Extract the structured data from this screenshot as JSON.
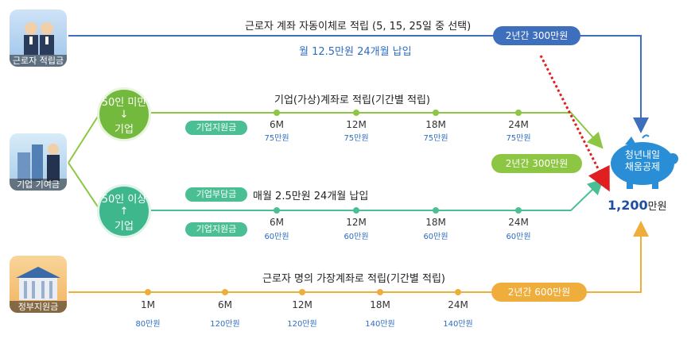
{
  "icons": {
    "worker": {
      "label": "근로자 적립금"
    },
    "company": {
      "label": "기업 기여금"
    },
    "government": {
      "label": "정부지원금"
    }
  },
  "worker_row": {
    "title": "근로자 계좌 자동이체로 적립 (5, 15, 25일 중 선택)",
    "subtitle": "월 12.5만원 24개월 납입",
    "total_pill": "2년간 300만원"
  },
  "company_small": {
    "circle_line1": "50인 미만↓",
    "circle_line2": "기업",
    "title": "기업(가상)계좌로 적립(기간별 적립)",
    "tag": "기업지원금",
    "milestones": [
      {
        "month": "6M",
        "amount": "75만원"
      },
      {
        "month": "12M",
        "amount": "75만원"
      },
      {
        "month": "18M",
        "amount": "75만원"
      },
      {
        "month": "24M",
        "amount": "75만원"
      }
    ]
  },
  "company_total_pill": "2년간 300만원",
  "company_large": {
    "circle_line1": "50인 이상↑",
    "circle_line2": "기업",
    "burden_tag": "기업부담금",
    "burden_text": "매월 2.5만원 24개월 납입",
    "tag": "기업지원금",
    "milestones": [
      {
        "month": "6M",
        "amount": "60만원"
      },
      {
        "month": "12M",
        "amount": "60만원"
      },
      {
        "month": "18M",
        "amount": "60만원"
      },
      {
        "month": "24M",
        "amount": "60만원"
      }
    ]
  },
  "government_row": {
    "title": "근로자 명의 가장계좌로 적립(기간별 적립)",
    "total_pill": "2년간 600만원",
    "milestones": [
      {
        "month": "1M",
        "amount": "80만원"
      },
      {
        "month": "6M",
        "amount": "120만원"
      },
      {
        "month": "12M",
        "amount": "120만원"
      },
      {
        "month": "18M",
        "amount": "140만원"
      },
      {
        "month": "24M",
        "amount": "140만원"
      }
    ]
  },
  "result": {
    "pig_line1": "청년내일",
    "pig_line2": "채움공제",
    "total_number": "1,200",
    "total_unit": "만원"
  },
  "colors": {
    "blue": "#3e6fbd",
    "green": "#8cc642",
    "teal": "#4bbf94",
    "orange": "#efad3b",
    "red_dotted": "#e02020"
  }
}
